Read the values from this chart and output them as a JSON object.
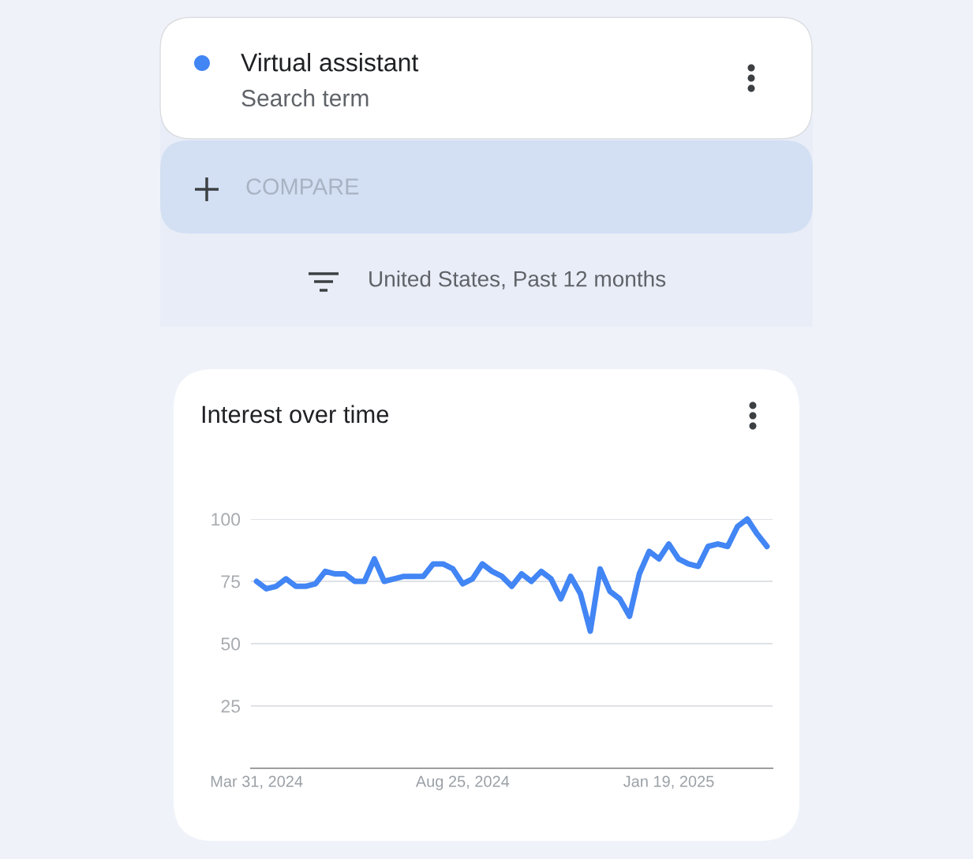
{
  "chart_data": {
    "type": "line",
    "title": "Interest over time",
    "subtitle": "United States, Past 12 months",
    "annotations": [
      "Search term",
      "COMPARE"
    ],
    "x": [
      "2024-03-31",
      "2024-04-07",
      "2024-04-14",
      "2024-04-21",
      "2024-04-28",
      "2024-05-05",
      "2024-05-12",
      "2024-05-19",
      "2024-05-26",
      "2024-06-02",
      "2024-06-09",
      "2024-06-16",
      "2024-06-23",
      "2024-06-30",
      "2024-07-07",
      "2024-07-14",
      "2024-07-21",
      "2024-07-28",
      "2024-08-04",
      "2024-08-11",
      "2024-08-18",
      "2024-08-25",
      "2024-09-01",
      "2024-09-08",
      "2024-09-15",
      "2024-09-22",
      "2024-09-29",
      "2024-10-06",
      "2024-10-13",
      "2024-10-20",
      "2024-10-27",
      "2024-11-03",
      "2024-11-10",
      "2024-11-17",
      "2024-11-24",
      "2024-12-01",
      "2024-12-08",
      "2024-12-15",
      "2024-12-22",
      "2024-12-29",
      "2025-01-05",
      "2025-01-12",
      "2025-01-19",
      "2025-01-26",
      "2025-02-02",
      "2025-02-09",
      "2025-02-16",
      "2025-02-23",
      "2025-03-02",
      "2025-03-09",
      "2025-03-16",
      "2025-03-23",
      "2025-03-30"
    ],
    "series": [
      {
        "name": "Virtual assistant",
        "color": "#4285f4",
        "values": [
          75,
          72,
          73,
          76,
          73,
          73,
          74,
          79,
          78,
          78,
          75,
          75,
          84,
          75,
          76,
          77,
          77,
          77,
          82,
          82,
          80,
          74,
          76,
          82,
          79,
          77,
          73,
          78,
          75,
          79,
          76,
          68,
          77,
          70,
          55,
          80,
          71,
          68,
          61,
          78,
          87,
          84,
          90,
          84,
          82,
          81,
          89,
          90,
          89,
          97,
          100,
          94,
          89
        ]
      }
    ],
    "xlim": [
      "2024-03-27",
      "2025-04-03"
    ],
    "xticks": [
      {
        "value": "2024-03-31",
        "label": "Mar 31, 2024"
      },
      {
        "value": "2024-08-25",
        "label": "Aug 25, 2024"
      },
      {
        "value": "2025-01-19",
        "label": "Jan 19, 2025"
      }
    ],
    "ylim": [
      0,
      100
    ],
    "yticks": [
      25,
      50,
      75,
      100
    ],
    "grid": "y",
    "legend": "top",
    "marker": "none",
    "line_style": "solid"
  }
}
